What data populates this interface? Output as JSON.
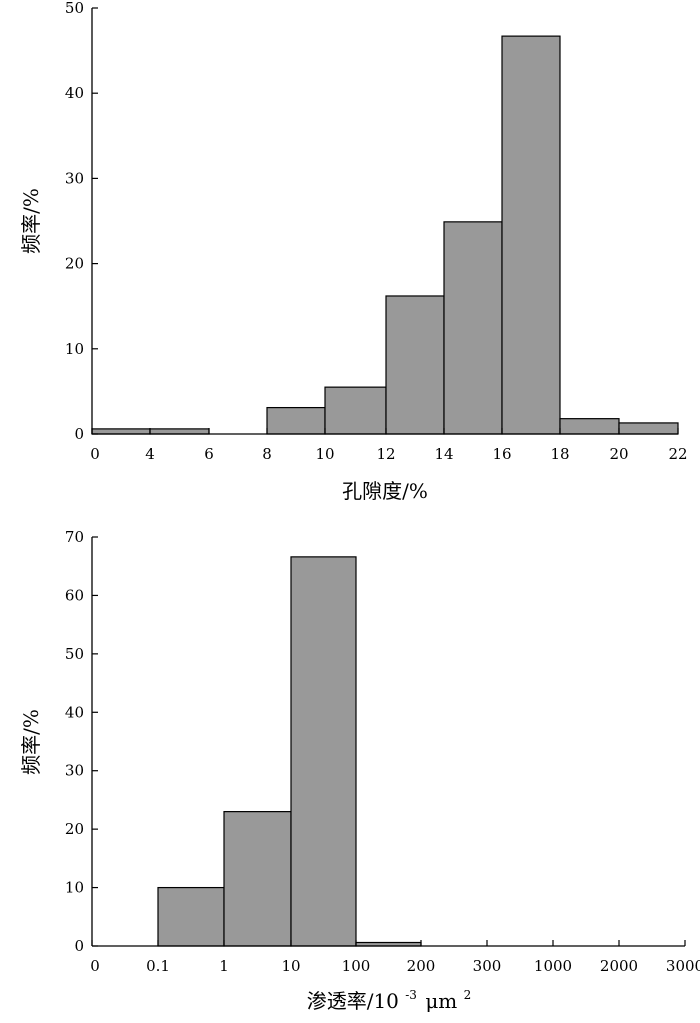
{
  "chart_data": [
    {
      "type": "bar",
      "xlabel": "孔隙度/%",
      "ylabel": "频率/%",
      "ylim": [
        0,
        50
      ],
      "yticks": [
        0,
        10,
        20,
        30,
        40,
        50
      ],
      "xticks": [
        "0",
        "4",
        "6",
        "8",
        "10",
        "12",
        "14",
        "16",
        "18",
        "20",
        "22"
      ],
      "bins": [
        {
          "from": "0",
          "to": "4",
          "value": 0.6
        },
        {
          "from": "4",
          "to": "6",
          "value": 0.6
        },
        {
          "from": "6",
          "to": "8",
          "value": 0
        },
        {
          "from": "8",
          "to": "10",
          "value": 3.1
        },
        {
          "from": "10",
          "to": "12",
          "value": 5.5
        },
        {
          "from": "12",
          "to": "14",
          "value": 16.2
        },
        {
          "from": "14",
          "to": "16",
          "value": 24.9
        },
        {
          "from": "16",
          "to": "18",
          "value": 46.7
        },
        {
          "from": "18",
          "to": "20",
          "value": 1.8
        },
        {
          "from": "20",
          "to": "22",
          "value": 1.3
        }
      ]
    },
    {
      "type": "bar",
      "xlabel": "渗透率/10",
      "xlabel_sup": "-3",
      "xlabel_unit": "μm",
      "xlabel_unit_sup": "2",
      "ylabel": "频率/%",
      "ylim": [
        0,
        70
      ],
      "yticks": [
        0,
        10,
        20,
        30,
        40,
        50,
        60,
        70
      ],
      "xticks": [
        "0",
        "0.1",
        "1",
        "10",
        "100",
        "200",
        "300",
        "1000",
        "2000",
        "3000"
      ],
      "bins": [
        {
          "from": "0",
          "to": "0.1",
          "value": 0
        },
        {
          "from": "0.1",
          "to": "1",
          "value": 10.0
        },
        {
          "from": "1",
          "to": "10",
          "value": 23.0
        },
        {
          "from": "10",
          "to": "100",
          "value": 66.6
        },
        {
          "from": "100",
          "to": "200",
          "value": 0.6
        },
        {
          "from": "200",
          "to": "300",
          "value": 0
        },
        {
          "from": "300",
          "to": "1000",
          "value": 0
        },
        {
          "from": "1000",
          "to": "2000",
          "value": 0
        },
        {
          "from": "2000",
          "to": "3000",
          "value": 0
        }
      ]
    }
  ]
}
